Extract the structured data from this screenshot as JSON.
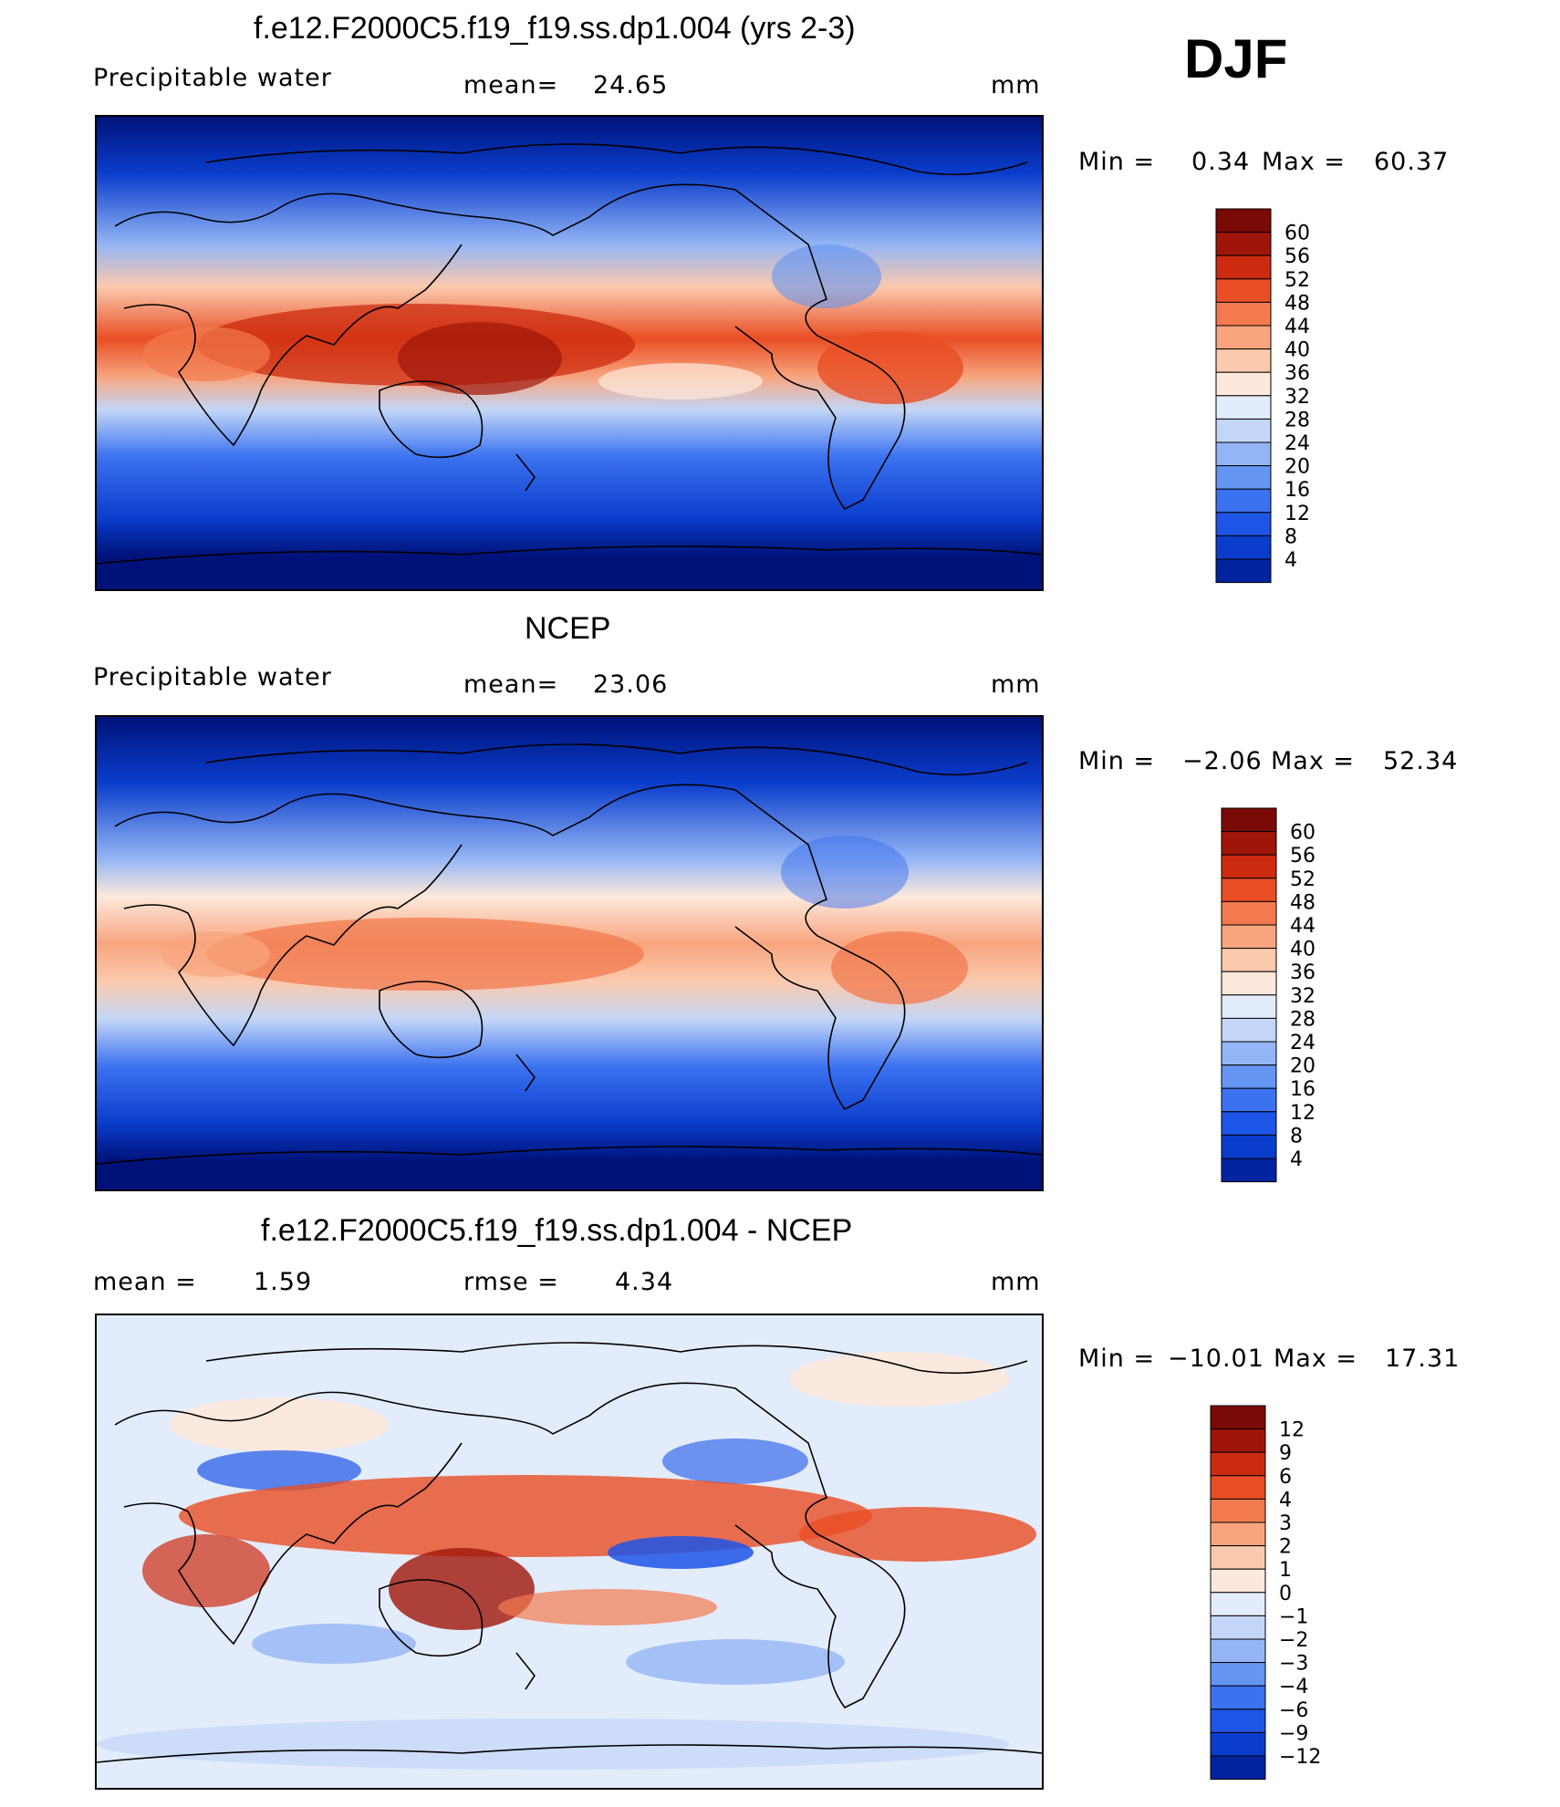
{
  "season": "DJF",
  "chart_data": [
    {
      "type": "heatmap",
      "title": "f.e12.F2000C5.f19_f19.ss.dp1.004 (yrs 2-3)",
      "variable": "Precipitable water",
      "stat_label": "mean=",
      "stat_value": "24.65",
      "units": "mm",
      "min_label": "Min =",
      "min_value": "0.34",
      "max_label": "Max =",
      "max_value": "60.37",
      "colorbar_levels": [
        "60",
        "56",
        "52",
        "48",
        "44",
        "40",
        "36",
        "32",
        "28",
        "24",
        "20",
        "16",
        "12",
        "8",
        "4"
      ],
      "colormap": "blue-to-red diverging",
      "field": "model"
    },
    {
      "type": "heatmap",
      "title": "NCEP",
      "variable": "Precipitable water",
      "stat_label": "mean=",
      "stat_value": "23.06",
      "units": "mm",
      "min_label": "Min =",
      "min_value": "−2.06",
      "max_label": "Max =",
      "max_value": "52.34",
      "colorbar_levels": [
        "60",
        "56",
        "52",
        "48",
        "44",
        "40",
        "36",
        "32",
        "28",
        "24",
        "20",
        "16",
        "12",
        "8",
        "4"
      ],
      "colormap": "blue-to-red diverging",
      "field": "observed"
    },
    {
      "type": "heatmap",
      "title": "f.e12.F2000C5.f19_f19.ss.dp1.004 - NCEP",
      "stat_label": "mean =",
      "stat_value": "1.59",
      "stat2_label": "rmse =",
      "stat2_value": "4.34",
      "units": "mm",
      "min_label": "Min =",
      "min_value": "−10.01",
      "max_label": "Max =",
      "max_value": "17.31",
      "colorbar_levels": [
        "12",
        "9",
        "6",
        "4",
        "3",
        "2",
        "1",
        "0",
        "−1",
        "−2",
        "−3",
        "−4",
        "−6",
        "−9",
        "−12"
      ],
      "colormap": "blue-to-red diverging",
      "field": "difference"
    }
  ],
  "colors": {
    "scale": [
      "#00127a",
      "#00239e",
      "#0a3dcc",
      "#1d55e6",
      "#3b72f0",
      "#6495f2",
      "#94b5f5",
      "#c3d6f7",
      "#e3ecfa",
      "#fde9dc",
      "#fbc9ad",
      "#f8a57f",
      "#f27a4e",
      "#e94e24",
      "#cc2b0f",
      "#a0150a",
      "#7a0a05"
    ]
  }
}
